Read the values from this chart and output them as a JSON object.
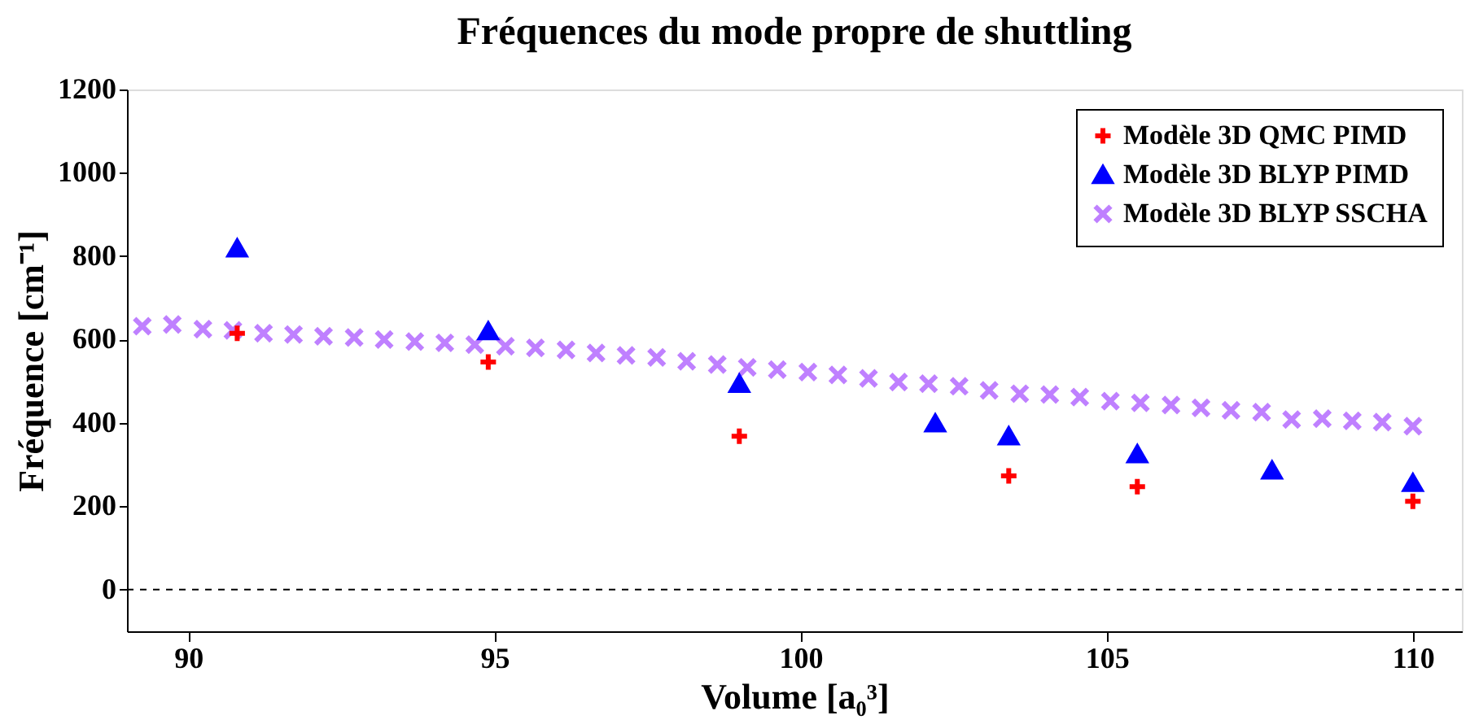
{
  "chart_data": {
    "type": "scatter",
    "title": "Fréquences du mode propre de shuttling",
    "xlabel": "Volume [a₀³]",
    "ylabel": "Fréquence [cm⁻¹]",
    "xlim": [
      89,
      110.8
    ],
    "ylim": [
      -100,
      1200
    ],
    "xticks": [
      90,
      95,
      100,
      105,
      110
    ],
    "yticks": [
      0,
      200,
      400,
      600,
      800,
      1000,
      1200
    ],
    "grid": false,
    "legend": "top right",
    "ref_lines": [
      {
        "axis": "y",
        "value": 0,
        "color": "#000000",
        "line_style": "dashed"
      }
    ],
    "series": [
      {
        "name": "Modèle 3D QMC PIMD",
        "color": "#ff0000",
        "marker": "cross",
        "x": [
          90.8,
          94.9,
          99.0,
          103.4,
          105.5,
          110.0
        ],
        "values": [
          615,
          546,
          368,
          273,
          247,
          212
        ]
      },
      {
        "name": "Modèle 3D BLYP PIMD",
        "color": "#0000ff",
        "marker": "triangle",
        "x": [
          90.8,
          94.9,
          99.0,
          102.2,
          103.4,
          105.5,
          107.7,
          110.0
        ],
        "values": [
          819,
          620,
          494,
          399,
          368,
          325,
          286,
          256
        ]
      },
      {
        "name": "Modèle 3D BLYP SSCHA",
        "color": "#bf80ff",
        "marker": "x",
        "x": [
          89.25,
          89.74,
          90.24,
          90.73,
          91.23,
          91.72,
          92.21,
          92.71,
          93.2,
          93.7,
          94.19,
          94.68,
          95.18,
          95.67,
          96.17,
          96.66,
          97.15,
          97.65,
          98.14,
          98.64,
          99.13,
          99.62,
          100.12,
          100.61,
          101.11,
          101.6,
          102.09,
          102.59,
          103.08,
          103.58,
          104.07,
          104.56,
          105.06,
          105.55,
          106.05,
          106.54,
          107.03,
          107.53,
          108.02,
          108.52,
          109.01,
          109.5,
          110.0
        ],
        "values": [
          632,
          636,
          625,
          622,
          615,
          612,
          608,
          605,
          600,
          595,
          592,
          588,
          584,
          580,
          575,
          568,
          562,
          557,
          548,
          540,
          533,
          528,
          522,
          515,
          507,
          498,
          494,
          488,
          478,
          470,
          468,
          462,
          452,
          448,
          443,
          436,
          430,
          426,
          408,
          410,
          405,
          402,
          392
        ]
      }
    ]
  }
}
